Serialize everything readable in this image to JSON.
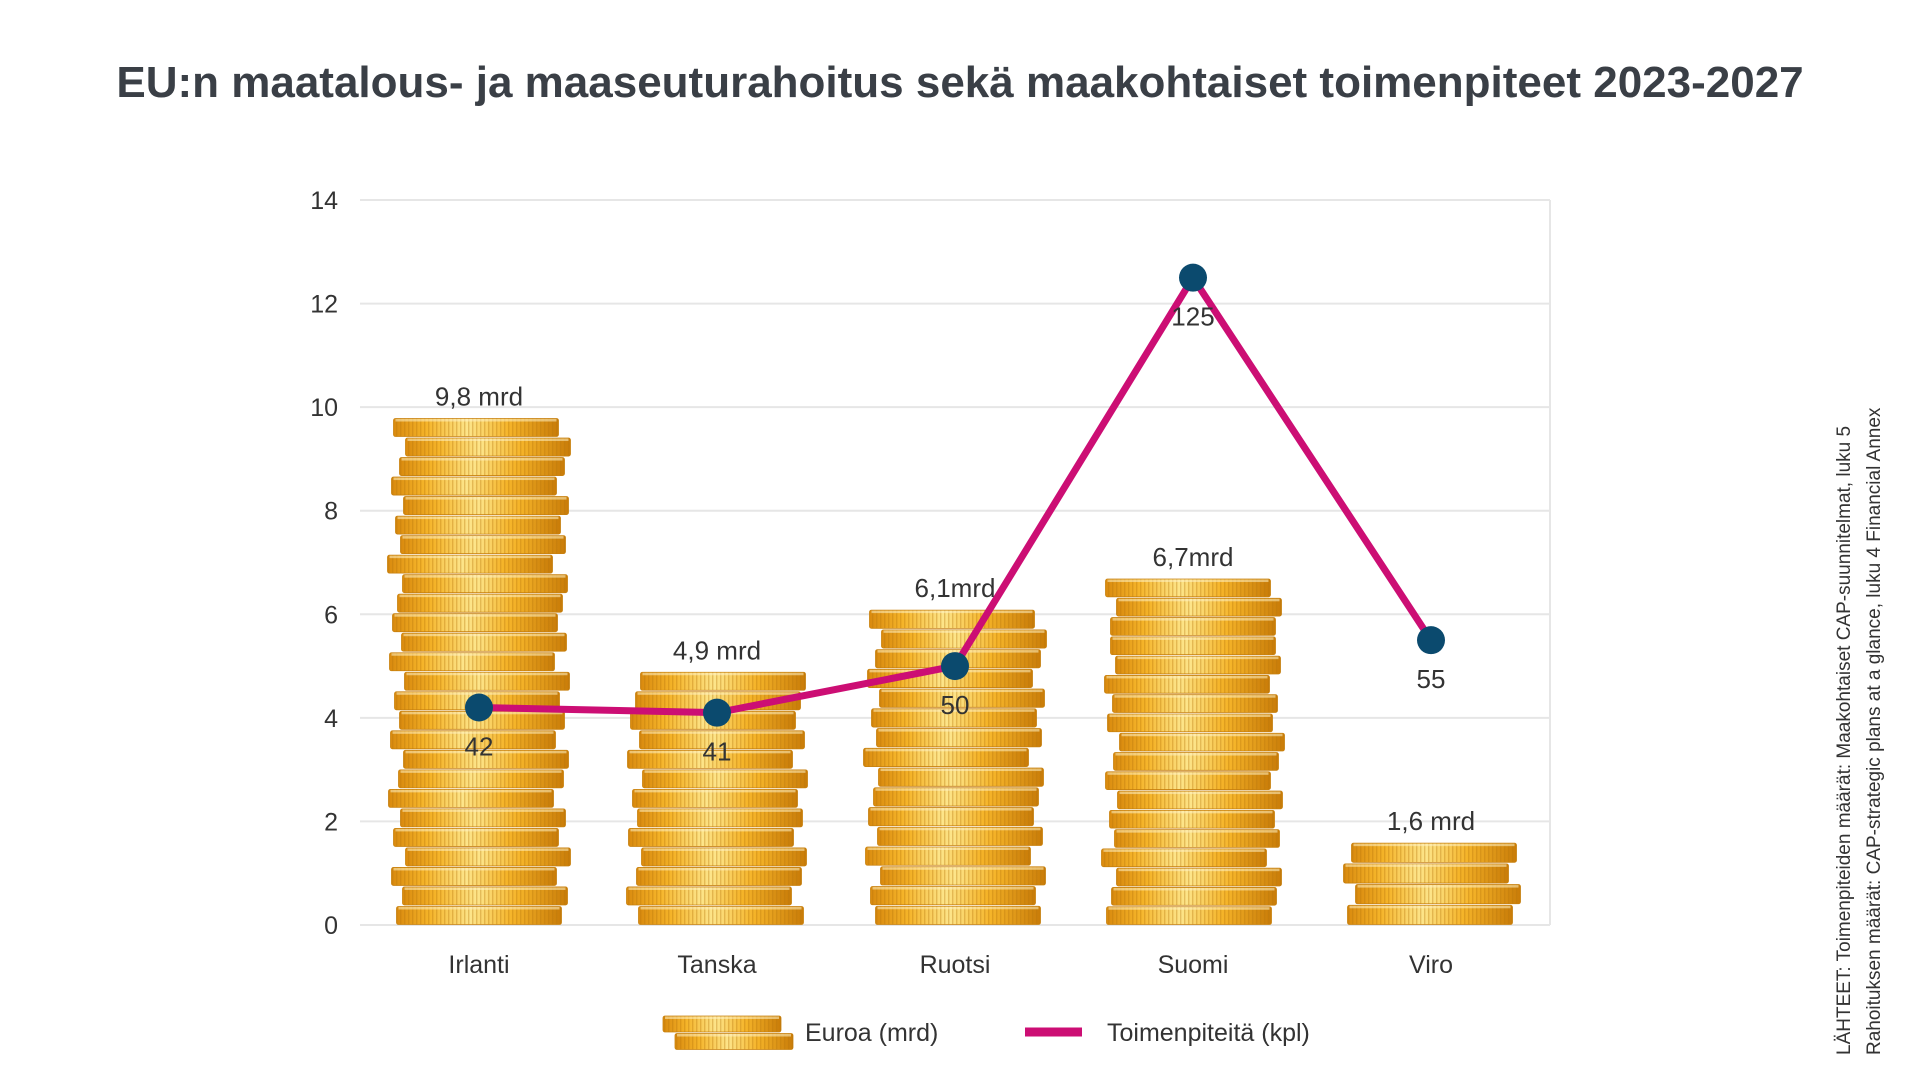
{
  "chart_data": {
    "type": "bar",
    "title": "EU:n maatalous- ja maaseuturahoitus sekä maakohtaiset toimenpiteet 2023-2027",
    "categories": [
      "Irlanti",
      "Tanska",
      "Ruotsi",
      "Suomi",
      "Viro"
    ],
    "ylim": [
      0,
      14
    ],
    "yticks": [
      "0",
      "2",
      "4",
      "6",
      "8",
      "10",
      "12",
      "14"
    ],
    "grid": true,
    "legend_position": "bottom",
    "series": [
      {
        "name": "Euroa (mrd)",
        "type": "bar",
        "style": "coin-stacks",
        "values": [
          9.8,
          4.9,
          6.1,
          6.7,
          1.6
        ],
        "labels": [
          "9,8 mrd",
          "4,9 mrd",
          "6,1mrd",
          "6,7mrd",
          "1,6 mrd"
        ]
      },
      {
        "name": "Toimenpiteitä (kpl)",
        "type": "line",
        "color": "#cc0e74",
        "marker_color": "#0b4a6e",
        "values": [
          42,
          41,
          50,
          125,
          55
        ],
        "labels": [
          "42",
          "41",
          "50",
          "125",
          "55"
        ]
      }
    ]
  },
  "source_note": {
    "line1": "LÄHTEET: Toimenpiteiden määrät: Maakohtaiset CAP-suunnitelmat, luku 5",
    "line2": "Rahoituksen määrät: CAP-strategic plans at a glance, luku 4 Financial Annex"
  },
  "colors": {
    "coin_light": "#fde58a",
    "coin_mid": "#f5b429",
    "coin_dark": "#d98a0e",
    "line": "#cc0e74",
    "marker": "#0b4a6e"
  }
}
